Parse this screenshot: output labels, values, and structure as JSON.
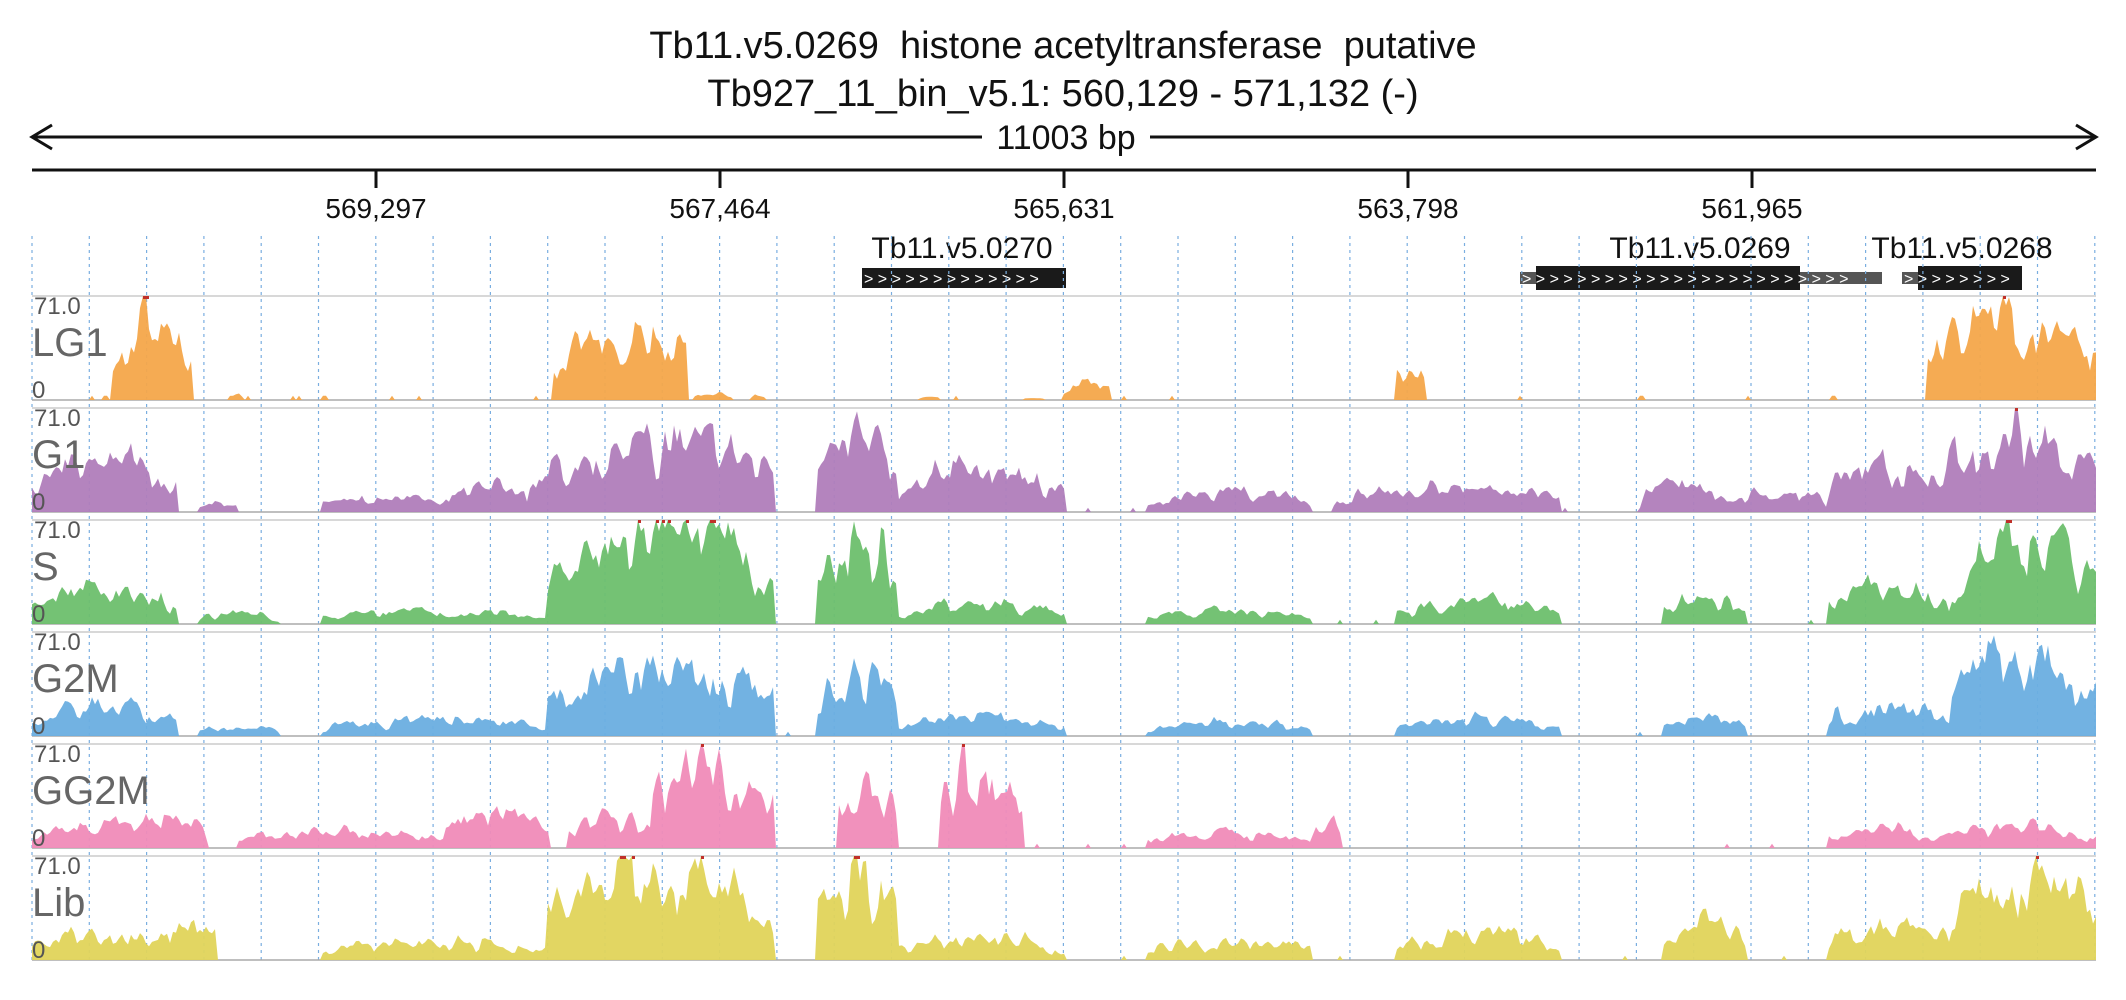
{
  "header": {
    "gene_title": "Tb11.v5.0269  histone acetyltransferase  putative",
    "region": "Tb927_11_bin_v5.1: 560,129 - 571,132 (-)",
    "span_label": "11003 bp"
  },
  "ruler": {
    "ticks": [
      "569,297",
      "567,464",
      "565,631",
      "563,798",
      "561,965"
    ]
  },
  "genes": [
    {
      "label": "Tb11.v5.0270"
    },
    {
      "label": "Tb11.v5.0269"
    },
    {
      "label": "Tb11.v5.0268"
    }
  ],
  "tracks": [
    {
      "name": "LG1",
      "max_label": "71.0",
      "min_label": "0",
      "color": "#f4a64a"
    },
    {
      "name": "G1",
      "max_label": "71.0",
      "min_label": "0",
      "color": "#b07dbb"
    },
    {
      "name": "S",
      "max_label": "71.0",
      "min_label": "0",
      "color": "#6dbf6d"
    },
    {
      "name": "G2M",
      "max_label": "71.0",
      "min_label": "0",
      "color": "#6aaee0"
    },
    {
      "name": "GG2M",
      "max_label": "71.0",
      "min_label": "0",
      "color": "#f08bb8"
    },
    {
      "name": "Lib",
      "max_label": "71.0",
      "min_label": "0",
      "color": "#e0d45a"
    }
  ],
  "colors": {
    "clip_marker": "#c0302a",
    "gene_box": "#1a1a1a",
    "gene_utr": "#555555",
    "grid": "#7aaee0"
  }
}
